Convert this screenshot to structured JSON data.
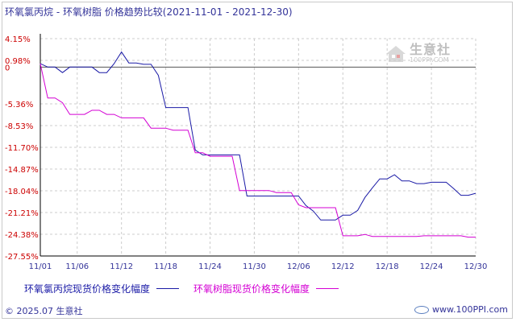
{
  "title": "环氧氯丙烷 - 环氧树脂 价格趋势比较",
  "date_range": "(2021-11-01 - 2021-12-30)",
  "watermark": {
    "name": "生意社",
    "url": "100PPI.COM"
  },
  "footer": {
    "copyright": "© 2025.07 生意社",
    "site": "www.100PPI.com"
  },
  "colors": {
    "series1": "#1a1aa6",
    "series2": "#d400d4",
    "axis": "#000000",
    "grid": "#cccccc",
    "label": "#cc0000",
    "xlabel": "#333399"
  },
  "chart_data": {
    "type": "line",
    "xlabel": "",
    "ylabel": "",
    "ylim": [
      -27.55,
      4.15
    ],
    "yticks": [
      4.15,
      0.98,
      0,
      -5.36,
      -8.53,
      -11.7,
      -14.87,
      -18.04,
      -21.21,
      -24.38,
      -27.55
    ],
    "ytick_labels": [
      "4.15%",
      "0.98%",
      "0",
      "-5.36%",
      "-8.53%",
      "-11.70%",
      "-14.87%",
      "-18.04%",
      "-21.21%",
      "-24.38%",
      "-27.55%"
    ],
    "x_start": "2021-11-01",
    "xticks": [
      "11/01",
      "11/06",
      "11/12",
      "11/18",
      "11/24",
      "11/30",
      "12/06",
      "12/12",
      "12/18",
      "12/24",
      "12/30"
    ],
    "grid": true,
    "legend_position": "bottom",
    "series": [
      {
        "name": "环氧氯丙烷现货价格变化幅度",
        "color": "#1a1aa6",
        "points": [
          [
            "2021-11-01",
            0.5
          ],
          [
            "2021-11-02",
            0
          ],
          [
            "2021-11-03",
            0
          ],
          [
            "2021-11-04",
            -0.8
          ],
          [
            "2021-11-05",
            0
          ],
          [
            "2021-11-06",
            0
          ],
          [
            "2021-11-08",
            0
          ],
          [
            "2021-11-09",
            -0.8
          ],
          [
            "2021-11-10",
            -0.8
          ],
          [
            "2021-11-11",
            0.5
          ],
          [
            "2021-11-12",
            2.2
          ],
          [
            "2021-11-13",
            0.6
          ],
          [
            "2021-11-14",
            0.6
          ],
          [
            "2021-11-15",
            0.4
          ],
          [
            "2021-11-16",
            0.4
          ],
          [
            "2021-11-17",
            -1.2
          ],
          [
            "2021-11-18",
            -5.9
          ],
          [
            "2021-11-19",
            -5.9
          ],
          [
            "2021-11-20",
            -5.9
          ],
          [
            "2021-11-21",
            -5.9
          ],
          [
            "2021-11-22",
            -12.1
          ],
          [
            "2021-11-23",
            -12.8
          ],
          [
            "2021-11-24",
            -12.8
          ],
          [
            "2021-11-25",
            -12.8
          ],
          [
            "2021-11-26",
            -12.8
          ],
          [
            "2021-11-27",
            -12.8
          ],
          [
            "2021-11-28",
            -12.8
          ],
          [
            "2021-11-29",
            -18.8
          ],
          [
            "2021-11-30",
            -18.8
          ],
          [
            "2021-12-01",
            -18.8
          ],
          [
            "2021-12-02",
            -18.8
          ],
          [
            "2021-12-03",
            -18.8
          ],
          [
            "2021-12-04",
            -18.8
          ],
          [
            "2021-12-05",
            -18.8
          ],
          [
            "2021-12-06",
            -18.8
          ],
          [
            "2021-12-07",
            -20.2
          ],
          [
            "2021-12-08",
            -21.0
          ],
          [
            "2021-12-09",
            -22.3
          ],
          [
            "2021-12-10",
            -22.3
          ],
          [
            "2021-12-11",
            -22.3
          ],
          [
            "2021-12-12",
            -21.6
          ],
          [
            "2021-12-13",
            -21.6
          ],
          [
            "2021-12-14",
            -20.9
          ],
          [
            "2021-12-15",
            -19.0
          ],
          [
            "2021-12-16",
            -17.6
          ],
          [
            "2021-12-17",
            -16.3
          ],
          [
            "2021-12-18",
            -16.3
          ],
          [
            "2021-12-19",
            -15.7
          ],
          [
            "2021-12-20",
            -16.6
          ],
          [
            "2021-12-21",
            -16.6
          ],
          [
            "2021-12-22",
            -17.0
          ],
          [
            "2021-12-23",
            -17.0
          ],
          [
            "2021-12-24",
            -16.8
          ],
          [
            "2021-12-25",
            -16.8
          ],
          [
            "2021-12-26",
            -16.8
          ],
          [
            "2021-12-27",
            -17.7
          ],
          [
            "2021-12-28",
            -18.7
          ],
          [
            "2021-12-29",
            -18.7
          ],
          [
            "2021-12-30",
            -18.4
          ]
        ]
      },
      {
        "name": "环氧树脂现货价格变化幅度",
        "color": "#d400d4",
        "points": [
          [
            "2021-11-01",
            0.5
          ],
          [
            "2021-11-02",
            -4.5
          ],
          [
            "2021-11-03",
            -4.5
          ],
          [
            "2021-11-04",
            -5.2
          ],
          [
            "2021-11-05",
            -6.9
          ],
          [
            "2021-11-06",
            -6.9
          ],
          [
            "2021-11-07",
            -6.9
          ],
          [
            "2021-11-08",
            -6.3
          ],
          [
            "2021-11-09",
            -6.3
          ],
          [
            "2021-11-10",
            -6.9
          ],
          [
            "2021-11-11",
            -6.9
          ],
          [
            "2021-11-12",
            -7.4
          ],
          [
            "2021-11-13",
            -7.4
          ],
          [
            "2021-11-14",
            -7.4
          ],
          [
            "2021-11-15",
            -7.4
          ],
          [
            "2021-11-16",
            -8.9
          ],
          [
            "2021-11-17",
            -8.9
          ],
          [
            "2021-11-18",
            -8.9
          ],
          [
            "2021-11-19",
            -9.2
          ],
          [
            "2021-11-20",
            -9.2
          ],
          [
            "2021-11-21",
            -9.2
          ],
          [
            "2021-11-22",
            -12.5
          ],
          [
            "2021-11-23",
            -12.5
          ],
          [
            "2021-11-24",
            -13.0
          ],
          [
            "2021-11-25",
            -13.0
          ],
          [
            "2021-11-26",
            -13.0
          ],
          [
            "2021-11-27",
            -13.0
          ],
          [
            "2021-11-28",
            -18.0
          ],
          [
            "2021-11-29",
            -18.0
          ],
          [
            "2021-11-30",
            -18.0
          ],
          [
            "2021-12-01",
            -18.0
          ],
          [
            "2021-12-02",
            -18.0
          ],
          [
            "2021-12-03",
            -18.3
          ],
          [
            "2021-12-04",
            -18.3
          ],
          [
            "2021-12-05",
            -18.3
          ],
          [
            "2021-12-06",
            -20.1
          ],
          [
            "2021-12-07",
            -20.5
          ],
          [
            "2021-12-08",
            -20.5
          ],
          [
            "2021-12-09",
            -20.5
          ],
          [
            "2021-12-10",
            -20.5
          ],
          [
            "2021-12-11",
            -20.5
          ],
          [
            "2021-12-12",
            -24.6
          ],
          [
            "2021-12-13",
            -24.6
          ],
          [
            "2021-12-14",
            -24.6
          ],
          [
            "2021-12-15",
            -24.4
          ],
          [
            "2021-12-16",
            -24.7
          ],
          [
            "2021-12-17",
            -24.7
          ],
          [
            "2021-12-18",
            -24.7
          ],
          [
            "2021-12-19",
            -24.7
          ],
          [
            "2021-12-20",
            -24.7
          ],
          [
            "2021-12-21",
            -24.7
          ],
          [
            "2021-12-22",
            -24.7
          ],
          [
            "2021-12-23",
            -24.6
          ],
          [
            "2021-12-24",
            -24.6
          ],
          [
            "2021-12-25",
            -24.6
          ],
          [
            "2021-12-26",
            -24.6
          ],
          [
            "2021-12-27",
            -24.6
          ],
          [
            "2021-12-28",
            -24.6
          ],
          [
            "2021-12-29",
            -24.8
          ],
          [
            "2021-12-30",
            -24.8
          ]
        ]
      }
    ]
  }
}
